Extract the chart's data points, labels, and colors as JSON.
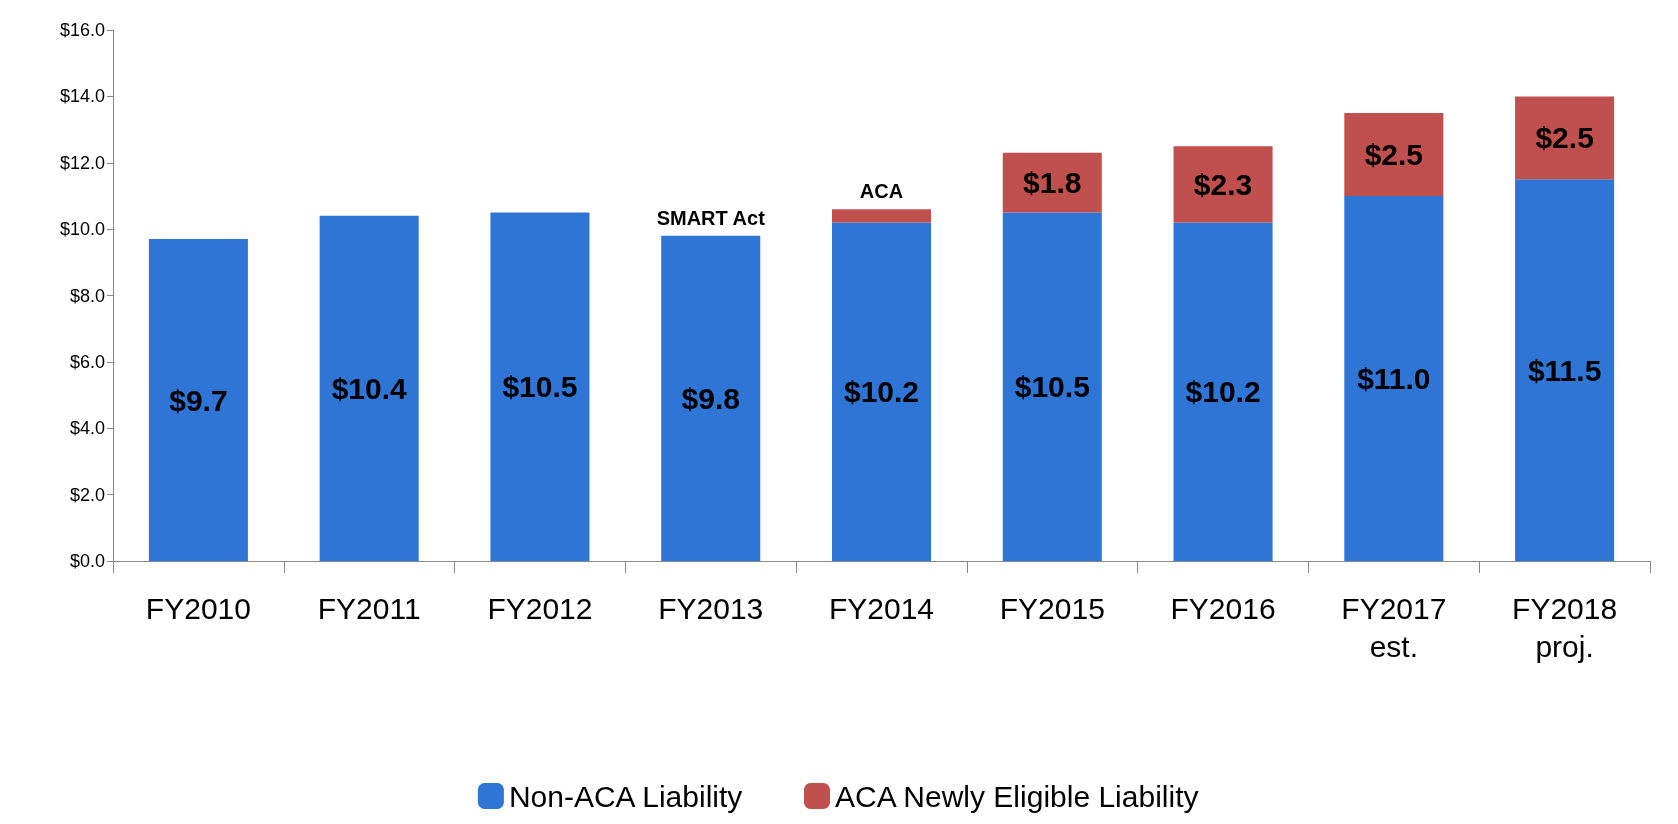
{
  "chart_data": {
    "type": "bar",
    "stacked": true,
    "categories": [
      "FY2010",
      "FY2011",
      "FY2012",
      "FY2013",
      "FY2014",
      "FY2015",
      "FY2016",
      "FY2017\nest.",
      "FY2018\nproj."
    ],
    "series": [
      {
        "name": "Non-ACA Liability",
        "color": "#2e75d6",
        "values": [
          9.7,
          10.4,
          10.5,
          9.8,
          10.2,
          10.5,
          10.2,
          11.0,
          11.5
        ],
        "value_labels": [
          "$9.7",
          "$10.4",
          "$10.5",
          "$9.8",
          "$10.2",
          "$10.5",
          "$10.2",
          "$11.0",
          "$11.5"
        ]
      },
      {
        "name": "ACA Newly Eligible Liability",
        "color": "#c0504d",
        "values": [
          null,
          null,
          null,
          null,
          0.4,
          1.8,
          2.3,
          2.5,
          2.5
        ],
        "value_labels": [
          null,
          null,
          null,
          null,
          null,
          "$1.8",
          "$2.3",
          "$2.5",
          "$2.5"
        ]
      }
    ],
    "ylim": [
      0,
      16
    ],
    "yticks": [
      {
        "value": 0,
        "label": "$0.0"
      },
      {
        "value": 2,
        "label": "$2.0"
      },
      {
        "value": 4,
        "label": "$4.0"
      },
      {
        "value": 6,
        "label": "$6.0"
      },
      {
        "value": 8,
        "label": "$8.0"
      },
      {
        "value": 10,
        "label": "$10.0"
      },
      {
        "value": 12,
        "label": "$12.0"
      },
      {
        "value": 14,
        "label": "$14.0"
      },
      {
        "value": 16,
        "label": "$16.0"
      }
    ],
    "annotations": [
      {
        "text": "SMART Act",
        "x": "FY2013",
        "y": 9.8
      },
      {
        "text": "ACA",
        "x": "FY2014",
        "y": 10.6
      }
    ],
    "grid": false,
    "legend": "bottom"
  }
}
